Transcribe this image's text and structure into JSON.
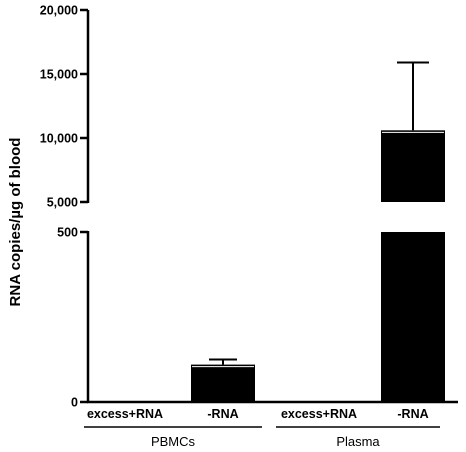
{
  "chart_data": {
    "type": "bar",
    "ylabel": "RNA copies/µg of blood",
    "xlabel": "",
    "title": "",
    "categories": [
      "excess+RNA",
      "-RNA",
      "excess+RNA",
      "-RNA"
    ],
    "groups": [
      {
        "label": "PBMCs",
        "categories": [
          "excess+RNA",
          "-RNA"
        ]
      },
      {
        "label": "Plasma",
        "categories": [
          "excess+RNA",
          "-RNA"
        ]
      }
    ],
    "values": [
      0,
      110,
      0,
      10600
    ],
    "error_upper": [
      0,
      125,
      0,
      15900
    ],
    "y_axis": {
      "broken": true,
      "lower_segment": {
        "range": [
          0,
          500
        ],
        "tick_values": [
          0,
          500
        ],
        "tick_labels": [
          "0",
          "500"
        ]
      },
      "upper_segment": {
        "range": [
          5000,
          20000
        ],
        "tick_values": [
          5000,
          10000,
          15000,
          20000
        ],
        "tick_labels": [
          "5,000",
          "10,000",
          "15,000",
          "20,000"
        ]
      }
    },
    "bar_color": "#000000",
    "grid": false,
    "legend": "none"
  }
}
